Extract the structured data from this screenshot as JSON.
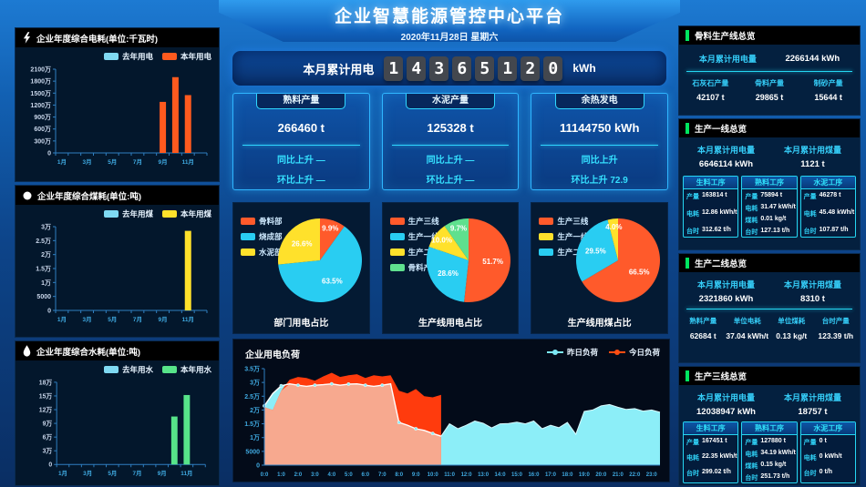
{
  "header": {
    "title": "企业智慧能源管控中心平台",
    "date": "2020年11月28日 星期六",
    "counter_label": "本月累计用电",
    "counter_digits": "14365120",
    "counter_unit": "kWh"
  },
  "stat_cards": [
    {
      "title": "熟料产量",
      "value": "266460 t",
      "yoy": "同比上升 —",
      "mom": "环比上升 —"
    },
    {
      "title": "水泥产量",
      "value": "125328 t",
      "yoy": "同比上升 —",
      "mom": "环比上升 —"
    },
    {
      "title": "余热发电",
      "value": "11144750 kWh",
      "yoy": "同比上升",
      "mom": "环比上升 72.9"
    }
  ],
  "left_panels": [
    {
      "title": "企业年度综合电耗(单位:千瓦时)",
      "icon": "lightning-icon",
      "legend": [
        {
          "label": "去年用电",
          "color": "#7fd9f2"
        },
        {
          "label": "本年用电",
          "color": "#ff5a1e"
        }
      ]
    },
    {
      "title": "企业年度综合煤耗(单位:吨)",
      "icon": "circle-icon",
      "legend": [
        {
          "label": "去年用煤",
          "color": "#7fd9f2"
        },
        {
          "label": "本年用煤",
          "color": "#ffe12b"
        }
      ]
    },
    {
      "title": "企业年度综合水耗(单位:吨)",
      "icon": "water-drop-icon",
      "legend": [
        {
          "label": "去年用水",
          "color": "#7fd9f2"
        },
        {
          "label": "本年用水",
          "color": "#57e389"
        }
      ]
    }
  ],
  "pie_panels": [
    {
      "title": "部门用电占比",
      "legend": [
        {
          "label": "骨料部",
          "color": "#ff5a2b"
        },
        {
          "label": "烧成部",
          "color": "#29cdf2"
        },
        {
          "label": "水泥部",
          "color": "#ffe12b"
        }
      ]
    },
    {
      "title": "生产线用电占比",
      "legend": [
        {
          "label": "生产三线",
          "color": "#ff5a2b"
        },
        {
          "label": "生产一线",
          "color": "#29cdf2"
        },
        {
          "label": "生产二线",
          "color": "#ffe12b"
        },
        {
          "label": "骨料产线",
          "color": "#5fe08e"
        }
      ]
    },
    {
      "title": "生产线用煤占比",
      "legend": [
        {
          "label": "生产三线",
          "color": "#ff5a2b"
        },
        {
          "label": "生产一线",
          "color": "#ffe12b"
        },
        {
          "label": "生产二线",
          "color": "#29cdf2"
        }
      ]
    }
  ],
  "load_panel": {
    "title": "企业用电负荷",
    "legend": [
      {
        "label": "昨日负荷",
        "color": "#7ce8f4"
      },
      {
        "label": "今日负荷",
        "color": "#ff4d12"
      }
    ]
  },
  "right_panels": {
    "aggregate": {
      "title": "骨料生产线总览",
      "kpi": {
        "label": "本月累计用电量",
        "value": "2266144 kWh"
      },
      "cols": [
        {
          "label": "石灰石产量",
          "value": "42107 t"
        },
        {
          "label": "骨料产量",
          "value": "29865 t"
        },
        {
          "label": "制砂产量",
          "value": "15644 t"
        }
      ]
    },
    "line1": {
      "title": "生产一线总览",
      "kpis": [
        {
          "label": "本月累计用电量",
          "value": "6646114 kWh"
        },
        {
          "label": "本月累计用煤量",
          "value": "1121 t"
        }
      ],
      "boxes": [
        {
          "title": "生料工序",
          "rows": [
            {
              "label": "产量",
              "value": "163814 t"
            },
            {
              "label": "电耗",
              "value": "12.86 kWh/t"
            },
            {
              "label": "台时",
              "value": "312.62 t/h"
            }
          ]
        },
        {
          "title": "熟料工序",
          "rows": [
            {
              "label": "产量",
              "value": "75894 t"
            },
            {
              "label": "电耗",
              "value": "31.47 kWh/t"
            },
            {
              "label": "煤耗",
              "value": "0.01 kg/t"
            },
            {
              "label": "台时",
              "value": "127.13 t/h"
            }
          ]
        },
        {
          "title": "水泥工序",
          "rows": [
            {
              "label": "产量",
              "value": "46278 t"
            },
            {
              "label": "电耗",
              "value": "45.48 kWh/t"
            },
            {
              "label": "台时",
              "value": "107.87 t/h"
            }
          ]
        }
      ]
    },
    "line2": {
      "title": "生产二线总览",
      "kpis": [
        {
          "label": "本月累计用电量",
          "value": "2321860 kWh"
        },
        {
          "label": "本月累计用煤量",
          "value": "8310 t"
        }
      ],
      "stats": [
        {
          "label": "熟料产量",
          "value": "62684 t"
        },
        {
          "label": "单位电耗",
          "value": "37.04 kWh/t"
        },
        {
          "label": "单位煤耗",
          "value": "0.13 kg/t"
        },
        {
          "label": "台时产量",
          "value": "123.39 t/h"
        }
      ]
    },
    "line3": {
      "title": "生产三线总览",
      "kpis": [
        {
          "label": "本月累计用电量",
          "value": "12038947 kWh"
        },
        {
          "label": "本月累计用煤量",
          "value": "18757 t"
        }
      ],
      "boxes": [
        {
          "title": "生料工序",
          "rows": [
            {
              "label": "产量",
              "value": "167451 t"
            },
            {
              "label": "电耗",
              "value": "22.35 kWh/t"
            },
            {
              "label": "台时",
              "value": "299.02 t/h"
            }
          ]
        },
        {
          "title": "熟料工序",
          "rows": [
            {
              "label": "产量",
              "value": "127880 t"
            },
            {
              "label": "电耗",
              "value": "34.19 kWh/t"
            },
            {
              "label": "煤耗",
              "value": "0.15 kg/t"
            },
            {
              "label": "台时",
              "value": "251.73 t/h"
            }
          ]
        },
        {
          "title": "水泥工序",
          "rows": [
            {
              "label": "产量",
              "value": "0 t"
            },
            {
              "label": "电耗",
              "value": "0 kWh/t"
            },
            {
              "label": "台时",
              "value": "0 t/h"
            }
          ]
        }
      ]
    }
  },
  "chart_data": [
    {
      "id": "year-electricity",
      "type": "bar",
      "title": "企业年度综合电耗(单位:千瓦时)",
      "categories": [
        "1月",
        "2月",
        "3月",
        "4月",
        "5月",
        "6月",
        "7月",
        "8月",
        "9月",
        "10月",
        "11月",
        "12月"
      ],
      "series": [
        {
          "name": "去年用电",
          "color": "#7fd9f2",
          "values": [
            0,
            0,
            0,
            0,
            0,
            0,
            0,
            0,
            0,
            0,
            0,
            0
          ]
        },
        {
          "name": "本年用电",
          "color": "#ff5a1e",
          "values": [
            0,
            0,
            0,
            0,
            0,
            0,
            0,
            0,
            12800000,
            19000000,
            14500000,
            0
          ]
        }
      ],
      "ylim": [
        0,
        21000000
      ],
      "ytick_labels": [
        "0",
        "300万",
        "600万",
        "900万",
        "1200万",
        "1500万",
        "1800万",
        "2100万"
      ]
    },
    {
      "id": "year-coal",
      "type": "bar",
      "title": "企业年度综合煤耗(单位:吨)",
      "categories": [
        "1月",
        "2月",
        "3月",
        "4月",
        "5月",
        "6月",
        "7月",
        "8月",
        "9月",
        "10月",
        "11月",
        "12月"
      ],
      "series": [
        {
          "name": "去年用煤",
          "color": "#7fd9f2",
          "values": [
            0,
            0,
            0,
            0,
            0,
            0,
            0,
            0,
            0,
            0,
            0,
            0
          ]
        },
        {
          "name": "本年用煤",
          "color": "#ffe12b",
          "values": [
            0,
            0,
            0,
            0,
            0,
            0,
            0,
            0,
            0,
            0,
            28500,
            0
          ]
        }
      ],
      "ylim": [
        0,
        30000
      ],
      "ytick_labels": [
        "0",
        "5000",
        "1万",
        "1.5万",
        "2万",
        "2.5万",
        "3万"
      ]
    },
    {
      "id": "year-water",
      "type": "bar",
      "title": "企业年度综合水耗(单位:吨)",
      "categories": [
        "1月",
        "2月",
        "3月",
        "4月",
        "5月",
        "6月",
        "7月",
        "8月",
        "9月",
        "10月",
        "11月",
        "12月"
      ],
      "series": [
        {
          "name": "去年用水",
          "color": "#7fd9f2",
          "values": [
            0,
            0,
            0,
            0,
            0,
            0,
            0,
            0,
            0,
            0,
            0,
            0
          ]
        },
        {
          "name": "本年用水",
          "color": "#57e389",
          "values": [
            0,
            0,
            0,
            0,
            0,
            0,
            0,
            0,
            0,
            105000,
            152000,
            0
          ]
        }
      ],
      "ylim": [
        0,
        180000
      ],
      "ytick_labels": [
        "0",
        "3万",
        "6万",
        "9万",
        "12万",
        "15万",
        "18万"
      ]
    },
    {
      "id": "dept-power-pie",
      "type": "pie",
      "title": "部门用电占比",
      "slices": [
        {
          "label": "骨料部",
          "value": 9.9,
          "color": "#ff5a2b"
        },
        {
          "label": "烧成部",
          "value": 63.5,
          "color": "#29cdf2"
        },
        {
          "label": "水泥部",
          "value": 26.6,
          "color": "#ffe12b"
        }
      ]
    },
    {
      "id": "line-power-pie",
      "type": "pie",
      "title": "生产线用电占比",
      "slices": [
        {
          "label": "生产三线",
          "value": 51.7,
          "color": "#ff5a2b"
        },
        {
          "label": "生产一线",
          "value": 28.6,
          "color": "#29cdf2"
        },
        {
          "label": "生产二线",
          "value": 10.0,
          "color": "#ffe12b"
        },
        {
          "label": "骨料产线",
          "value": 9.7,
          "color": "#5fe08e"
        }
      ]
    },
    {
      "id": "line-coal-pie",
      "type": "pie",
      "title": "生产线用煤占比",
      "slices": [
        {
          "label": "生产三线",
          "value": 66.5,
          "color": "#ff5a2b"
        },
        {
          "label": "生产二线",
          "value": 29.5,
          "color": "#29cdf2"
        },
        {
          "label": "生产一线",
          "value": 4.0,
          "color": "#ffe12b"
        }
      ]
    },
    {
      "id": "load-curve",
      "type": "area",
      "title": "企业用电负荷",
      "ylim": [
        0,
        35000
      ],
      "ytick_labels": [
        "0",
        "5000",
        "1万",
        "1.5万",
        "2万",
        "2.5万",
        "3万",
        "3.5万"
      ],
      "x_hours_step": 0.5,
      "x_labels": [
        "0:0",
        "1:0",
        "2:0",
        "3:0",
        "4:0",
        "5:0",
        "6:0",
        "7:0",
        "8:0",
        "9:0",
        "10:0",
        "11:0",
        "12:0",
        "13:0",
        "14:0",
        "15:0",
        "16:0",
        "17:0",
        "18:0",
        "19:0",
        "20:0",
        "21:0",
        "22:0",
        "23:0"
      ],
      "series": [
        {
          "name": "昨日负荷",
          "color": "#8ceef8",
          "values": [
            21500,
            26000,
            28800,
            29500,
            29000,
            28600,
            29000,
            29200,
            29500,
            29000,
            29400,
            29500,
            29000,
            28600,
            29000,
            29500,
            15500,
            14500,
            13200,
            12600,
            11500,
            10500,
            15000,
            13200,
            14500,
            16000,
            15200,
            13500,
            15000,
            15100,
            15600,
            15000,
            16000,
            13200,
            14500,
            13600,
            15500,
            11200,
            19500,
            20000,
            21500,
            22000,
            21000,
            20200,
            20500,
            19600,
            20000,
            19200
          ]
        },
        {
          "name": "今日负荷",
          "color": "#ff3b0d",
          "values": [
            21000,
            20000,
            27000,
            31000,
            32000,
            31600,
            30600,
            32200,
            33500,
            32000,
            32600,
            33000,
            31600,
            32600,
            32200,
            32600,
            27000,
            26000,
            27600,
            25000,
            24600,
            25500
          ]
        }
      ]
    }
  ]
}
